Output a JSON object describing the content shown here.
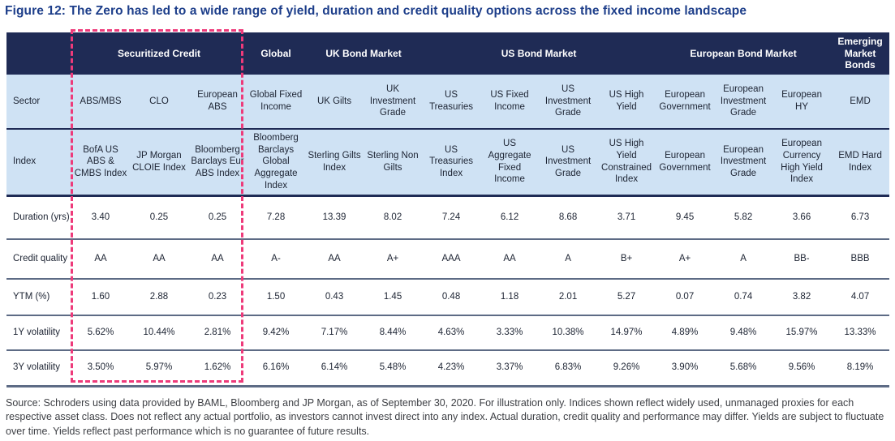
{
  "title": "Figure 12: The Zero has led to a wide range of yield, duration and credit quality options across the fixed income landscape",
  "colors": {
    "header_bg": "#1f2b55",
    "light_row_bg": "#cfe2f4",
    "title_blue": "#1d3e8a",
    "highlight_pink": "#ee3a7a",
    "separator_navy": "#1f2b55",
    "separator_slate": "#5d6b85"
  },
  "table": {
    "column_groups": [
      {
        "label": "",
        "span": 1
      },
      {
        "label": "Securitized Credit",
        "span": 3
      },
      {
        "label": "Global",
        "span": 1
      },
      {
        "label": "UK Bond Market",
        "span": 2
      },
      {
        "label": "US Bond Market",
        "span": 4
      },
      {
        "label": "European Bond Market",
        "span": 3
      },
      {
        "label": "Emerging Market Bonds",
        "span": 1
      }
    ],
    "rows": [
      {
        "label": "Sector",
        "shade": "light",
        "cells": [
          "ABS/MBS",
          "CLO",
          "European ABS",
          "Global Fixed Income",
          "UK Gilts",
          "UK Investment Grade",
          "US Treasuries",
          "US Fixed Income",
          "US Investment Grade",
          "US High Yield",
          "European Government",
          "European Investment Grade",
          "European HY",
          "EMD"
        ]
      },
      {
        "label": "Index",
        "shade": "light",
        "cells": [
          "BofA US ABS & CMBS Index",
          "JP Morgan CLOIE Index",
          "Bloomberg Barclays Eur ABS Index",
          "Bloomberg Barclays Global Aggregate Index",
          "Sterling Gilts Index",
          "Sterling Non Gilts",
          "US Treasuries Index",
          "US Aggregate Fixed Income",
          "US Investment Grade",
          "US High Yield Constrained Index",
          "European Government",
          "European Investment Grade",
          "European Currency High Yield Index",
          "EMD Hard Index"
        ]
      },
      {
        "label": "Duration (yrs)",
        "shade": "white",
        "cells": [
          "3.40",
          "0.25",
          "0.25",
          "7.28",
          "13.39",
          "8.02",
          "7.24",
          "6.12",
          "8.68",
          "3.71",
          "9.45",
          "5.82",
          "3.66",
          "6.73"
        ]
      },
      {
        "label": "Credit quality",
        "shade": "white",
        "cells": [
          "AA",
          "AA",
          "AA",
          "A-",
          "AA",
          "A+",
          "AAA",
          "AA",
          "A",
          "B+",
          "A+",
          "A",
          "BB-",
          "BBB"
        ]
      },
      {
        "label": "YTM (%)",
        "shade": "white",
        "cells": [
          "1.60",
          "2.88",
          "0.23",
          "1.50",
          "0.43",
          "1.45",
          "0.48",
          "1.18",
          "2.01",
          "5.27",
          "0.07",
          "0.74",
          "3.82",
          "4.07"
        ]
      },
      {
        "label": "1Y volatility",
        "shade": "white",
        "cells": [
          "5.62%",
          "10.44%",
          "2.81%",
          "9.42%",
          "7.17%",
          "8.44%",
          "4.63%",
          "3.33%",
          "10.38%",
          "14.97%",
          "4.89%",
          "9.48%",
          "15.97%",
          "13.33%"
        ]
      },
      {
        "label": "3Y volatility",
        "shade": "white",
        "cells": [
          "3.50%",
          "5.97%",
          "1.62%",
          "6.16%",
          "6.14%",
          "5.48%",
          "4.23%",
          "3.37%",
          "6.83%",
          "9.26%",
          "3.90%",
          "5.68%",
          "9.56%",
          "8.19%"
        ]
      }
    ]
  },
  "source": "Source: Schroders using data provided by BAML, Bloomberg and JP Morgan, as of September 30, 2020. For illustration only. Indices shown reflect widely used, unmanaged proxies for each respective asset class. Does not reflect any actual portfolio, as investors cannot invest direct into any index. Actual duration, credit quality and performance may differ. Yields are subject to fluctuate over time. Yields reflect past performance which is no guarantee of future results."
}
